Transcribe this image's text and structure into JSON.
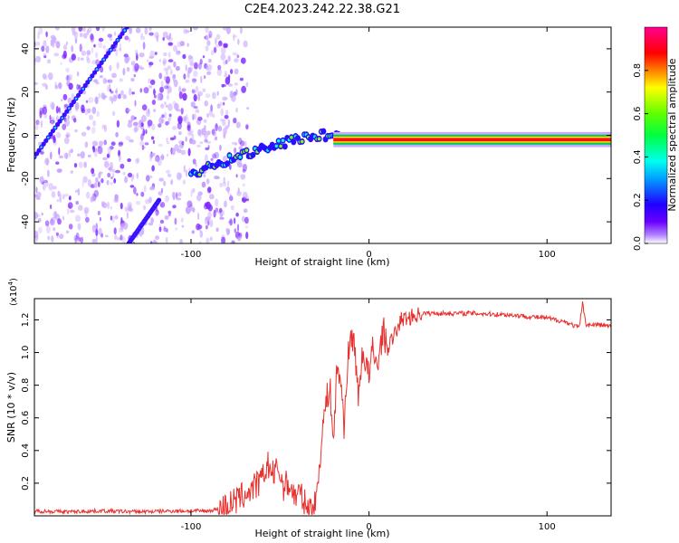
{
  "chart_data": [
    {
      "type": "heatmap",
      "title": "C2E4.2023.242.22.38.G21",
      "xlabel": "Height of straight line (km)",
      "ylabel": "Frequency (Hz)",
      "xlim": [
        -188,
        136
      ],
      "ylim": [
        -50,
        50
      ],
      "xticks": [
        {
          "value": -100,
          "label": "-100"
        },
        {
          "value": 0,
          "label": "0"
        },
        {
          "value": 100,
          "label": "100"
        }
      ],
      "yticks": [
        {
          "value": -40,
          "label": "-40"
        },
        {
          "value": -20,
          "label": "-20"
        },
        {
          "value": 0,
          "label": "0"
        },
        {
          "value": 20,
          "label": "20"
        },
        {
          "value": 40,
          "label": "40"
        }
      ],
      "colorbar": {
        "label": "Normalized spectral amplitude",
        "range": [
          0.0,
          1.0
        ],
        "ticks": [
          {
            "value": 0.0,
            "label": "0.0"
          },
          {
            "value": 0.2,
            "label": "0.2"
          },
          {
            "value": 0.4,
            "label": "0.4"
          },
          {
            "value": 0.6,
            "label": "0.6"
          },
          {
            "value": 0.8,
            "label": "0.8"
          }
        ],
        "colors": [
          "#ffffff",
          "#6a00ff",
          "#0000ff",
          "#00ffff",
          "#00ff00",
          "#ffff00",
          "#ff0000",
          "#ff00aa"
        ]
      },
      "main_trace": [
        [
          -100,
          -18
        ],
        [
          -90,
          -15
        ],
        [
          -75,
          -10
        ],
        [
          -60,
          -6
        ],
        [
          -50,
          -4
        ],
        [
          -40,
          -2
        ],
        [
          -30,
          0
        ],
        [
          -20,
          0
        ],
        [
          -10,
          -1
        ],
        [
          0,
          -2
        ],
        [
          20,
          -2
        ],
        [
          50,
          -2
        ],
        [
          80,
          -2
        ],
        [
          100,
          -2
        ],
        [
          136,
          -2
        ]
      ],
      "diagonal_tracks": [
        {
          "points": [
            [
              -188,
              -10
            ],
            [
              -136,
              50
            ]
          ]
        },
        {
          "points": [
            [
              -135,
              -50
            ],
            [
              -118,
              -30
            ]
          ]
        }
      ],
      "grid": false
    },
    {
      "type": "line",
      "xlabel": "Height of straight line (km)",
      "ylabel": "SNR (10 * v/v)",
      "ymultiplier_label": "(x10",
      "ymultiplier_exp": "4",
      "ymultiplier_close": ")",
      "xlim": [
        -188,
        136
      ],
      "ylim": [
        0.0,
        1.33
      ],
      "xticks": [
        {
          "value": -100,
          "label": "-100"
        },
        {
          "value": 0,
          "label": "0"
        },
        {
          "value": 100,
          "label": "100"
        }
      ],
      "yticks": [
        {
          "value": 0.2,
          "label": "0.2"
        },
        {
          "value": 0.4,
          "label": "0.4"
        },
        {
          "value": 0.6,
          "label": "0.6"
        },
        {
          "value": 0.8,
          "label": "0.8"
        },
        {
          "value": 1.0,
          "label": "1.0"
        },
        {
          "value": 1.2,
          "label": "1.2"
        }
      ],
      "series": [
        {
          "color": "#e8302e",
          "x": [
            -188,
            -170,
            -150,
            -130,
            -110,
            -90,
            -82,
            -75,
            -70,
            -65,
            -60,
            -57,
            -54,
            -51,
            -48,
            -45,
            -42,
            -39,
            -36,
            -33,
            -30,
            -28,
            -26,
            -24,
            -22,
            -20,
            -18,
            -16,
            -14,
            -12,
            -10,
            -8,
            -6,
            -4,
            -2,
            0,
            2,
            4,
            6,
            8,
            10,
            14,
            18,
            24,
            30,
            40,
            60,
            80,
            100,
            110,
            118,
            120,
            122,
            130,
            136
          ],
          "y": [
            0.03,
            0.025,
            0.03,
            0.025,
            0.03,
            0.03,
            0.05,
            0.09,
            0.13,
            0.17,
            0.22,
            0.32,
            0.25,
            0.29,
            0.18,
            0.2,
            0.12,
            0.14,
            0.07,
            0.04,
            0.07,
            0.3,
            0.55,
            0.7,
            0.8,
            0.45,
            0.9,
            0.85,
            0.55,
            0.95,
            1.1,
            1.05,
            0.7,
            1.0,
            0.95,
            0.85,
            1.02,
            0.92,
            1.0,
            1.15,
            1.02,
            1.1,
            1.2,
            1.22,
            1.24,
            1.24,
            1.24,
            1.23,
            1.21,
            1.19,
            1.15,
            1.3,
            1.17,
            1.17,
            1.16
          ]
        }
      ],
      "grid": false
    }
  ]
}
